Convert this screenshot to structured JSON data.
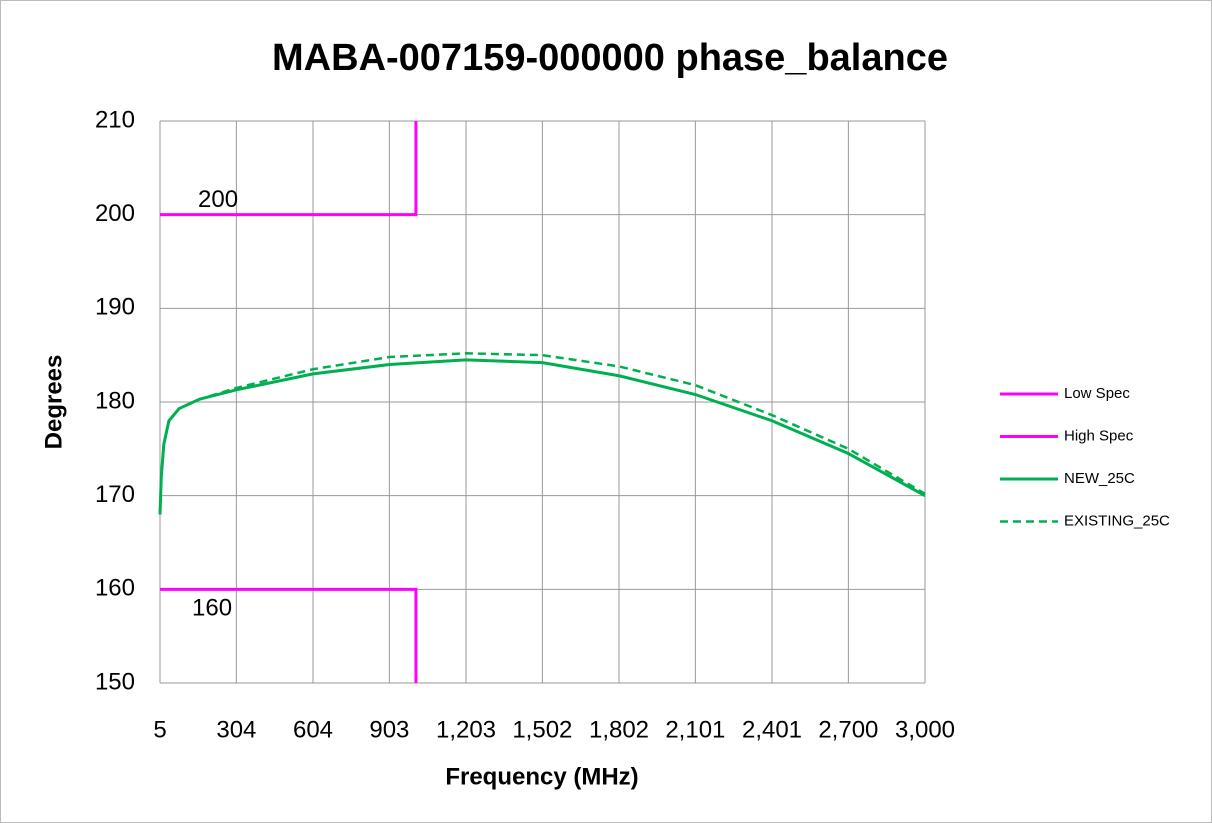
{
  "chart_data": {
    "type": "line",
    "title": "MABA-007159-000000 phase_balance",
    "xlabel": "Frequency (MHz)",
    "ylabel": "Degrees",
    "xlim": [
      5,
      3000
    ],
    "ylim": [
      150,
      210
    ],
    "xticks": [
      5,
      304,
      604,
      903,
      {
        "value": 1203,
        "label": "1,203"
      },
      {
        "value": 1502,
        "label": "1,502"
      },
      {
        "value": 1802,
        "label": "1,802"
      },
      {
        "value": 2101,
        "label": "2,101"
      },
      {
        "value": 2401,
        "label": "2,401"
      },
      {
        "value": 2700,
        "label": "2,700"
      },
      {
        "value": 3000,
        "label": "3,000"
      }
    ],
    "yticks": [
      150,
      160,
      170,
      180,
      190,
      200,
      210
    ],
    "grid": true,
    "legend": "right",
    "annotations": [
      "200",
      "160"
    ],
    "series": [
      {
        "name": "Low Spec",
        "color": "#ff00ff",
        "dashed": false,
        "x": [
          5,
          1007,
          1007
        ],
        "values": [
          160,
          160,
          150
        ]
      },
      {
        "name": "High Spec",
        "color": "#ff00ff",
        "dashed": false,
        "x": [
          5,
          1007,
          1007
        ],
        "values": [
          200,
          200,
          210
        ]
      },
      {
        "name": "NEW_25C",
        "color": "#00b050",
        "dashed": false,
        "x": [
          5,
          10,
          20,
          40,
          80,
          160,
          304,
          604,
          903,
          1203,
          1502,
          1802,
          2101,
          2401,
          2700,
          3000
        ],
        "values": [
          168,
          172,
          175.5,
          178,
          179.3,
          180.3,
          181.3,
          183,
          184,
          184.5,
          184.2,
          182.8,
          180.8,
          178,
          174.5,
          170
        ]
      },
      {
        "name": "EXISTING_25C",
        "color": "#00b050",
        "dashed": true,
        "x": [
          5,
          10,
          20,
          40,
          80,
          160,
          304,
          604,
          903,
          1203,
          1502,
          1802,
          2101,
          2401,
          2700,
          3000
        ],
        "values": [
          168,
          172,
          175.5,
          178,
          179.3,
          180.3,
          181.5,
          183.5,
          184.8,
          185.2,
          185,
          183.8,
          181.8,
          178.6,
          175,
          170.2
        ]
      }
    ]
  }
}
